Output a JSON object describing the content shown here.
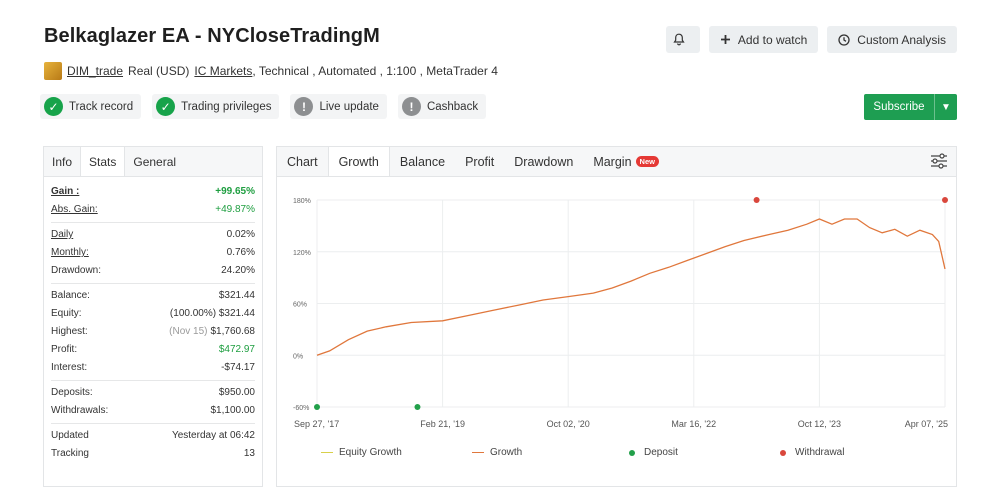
{
  "header": {
    "title": "Belkaglazer EA - NYCloseTradingM",
    "add_to_watch": "Add to watch",
    "custom_analysis": "Custom Analysis",
    "subscribe": "Subscribe"
  },
  "meta": {
    "user": "DIM_trade",
    "account": "Real (USD)",
    "broker": "IC Markets",
    "rest": ", Technical , Automated , 1:100 , MetaTrader 4"
  },
  "badges": [
    {
      "label": "Track record",
      "status": "ok"
    },
    {
      "label": "Trading privileges",
      "status": "ok"
    },
    {
      "label": "Live update",
      "status": "na"
    },
    {
      "label": "Cashback",
      "status": "na"
    }
  ],
  "info_tabs": [
    "Info",
    "Stats",
    "General"
  ],
  "stats": {
    "gain_k": "Gain :",
    "gain_v": "+99.65%",
    "abs_gain_k": "Abs. Gain:",
    "abs_gain_v": "+49.87%",
    "daily_k": "Daily",
    "daily_v": "0.02%",
    "monthly_k": "Monthly:",
    "monthly_v": "0.76%",
    "drawdown_k": "Drawdown:",
    "drawdown_v": "24.20%",
    "balance_k": "Balance:",
    "balance_v": "$321.44",
    "equity_k": "Equity:",
    "equity_v": "(100.00%) $321.44",
    "highest_k": "Highest:",
    "highest_date": "(Nov 15)",
    "highest_v": "$1,760.68",
    "profit_k": "Profit:",
    "profit_v": "$472.97",
    "interest_k": "Interest:",
    "interest_v": "-$74.17",
    "deposits_k": "Deposits:",
    "deposits_v": "$950.00",
    "withdrawals_k": "Withdrawals:",
    "withdrawals_v": "$1,100.00",
    "updated_k": "Updated",
    "updated_v": "Yesterday at 06:42",
    "tracking_k": "Tracking",
    "tracking_v": "13"
  },
  "chart_tabs": [
    "Chart",
    "Growth",
    "Balance",
    "Profit",
    "Drawdown",
    "Margin"
  ],
  "new_badge": "New",
  "chart_data": {
    "type": "line",
    "y_ticks": [
      "180%",
      "120%",
      "60%",
      "0%",
      "-60%"
    ],
    "ylim": [
      -60,
      180
    ],
    "x_ticks": [
      "Sep 27, '17",
      "Feb 21, '19",
      "Oct 02, '20",
      "Mar 16, '22",
      "Oct 12, '23",
      "Apr 07, '25"
    ],
    "series": [
      {
        "name": "Growth",
        "color": "#e0773c",
        "x": [
          0,
          0.02,
          0.05,
          0.08,
          0.11,
          0.15,
          0.2,
          0.24,
          0.28,
          0.32,
          0.36,
          0.4,
          0.44,
          0.47,
          0.5,
          0.53,
          0.56,
          0.59,
          0.62,
          0.65,
          0.68,
          0.72,
          0.75,
          0.78,
          0.8,
          0.82,
          0.84,
          0.86,
          0.88,
          0.9,
          0.92,
          0.94,
          0.96,
          0.98,
          0.99,
          1.0
        ],
        "values": [
          0,
          5,
          18,
          28,
          33,
          38,
          40,
          46,
          52,
          58,
          64,
          68,
          72,
          78,
          86,
          95,
          102,
          110,
          118,
          126,
          133,
          140,
          145,
          152,
          158,
          152,
          158,
          158,
          148,
          142,
          146,
          138,
          145,
          140,
          132,
          100
        ]
      },
      {
        "name": "Equity Growth",
        "color": "#d8d04a"
      }
    ],
    "deposits": [
      0.0,
      0.16
    ],
    "withdrawals": [
      0.7,
      1.0
    ],
    "legend": [
      {
        "label": "Equity Growth",
        "kind": "line",
        "color": "#d8d04a"
      },
      {
        "label": "Growth",
        "kind": "line",
        "color": "#e0773c"
      },
      {
        "label": "Deposit",
        "kind": "dot",
        "color": "#22a04a"
      },
      {
        "label": "Withdrawal",
        "kind": "dot",
        "color": "#d9473c"
      }
    ]
  }
}
